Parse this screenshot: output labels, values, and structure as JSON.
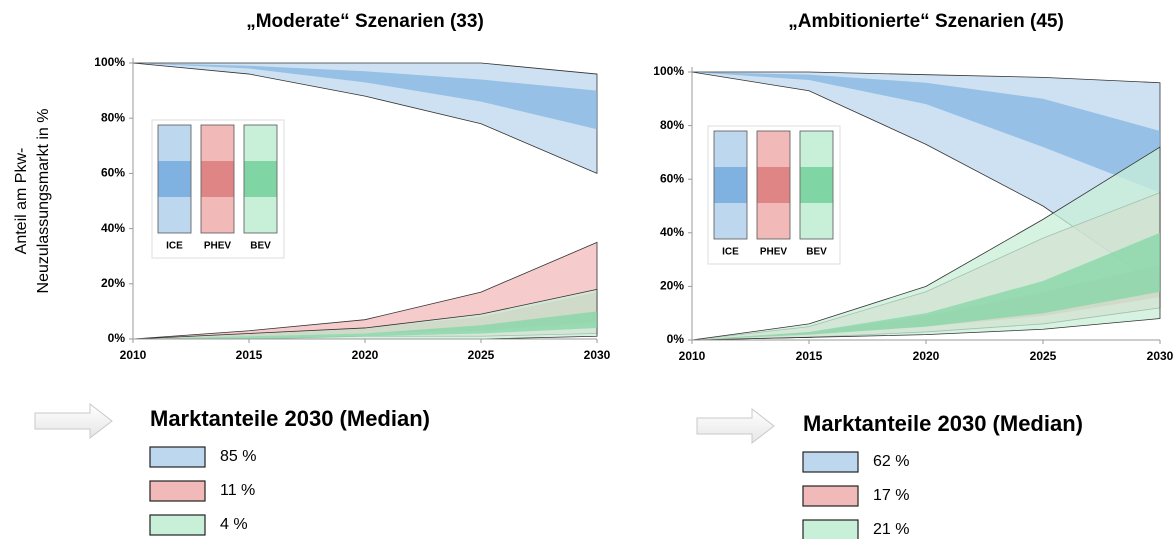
{
  "chart_data": [
    {
      "type": "band",
      "title": "„Moderate“ Szenarien (33)",
      "ylabel": [
        "Anteil am Pkw-",
        "Neuzulassungsmarkt in %"
      ],
      "x": [
        2010,
        2015,
        2020,
        2025,
        2030
      ],
      "xlim": [
        2010,
        2030
      ],
      "xticks": [
        2010,
        2015,
        2020,
        2025,
        2030
      ],
      "ylim": [
        0,
        100
      ],
      "yticks": [
        {
          "value": 0,
          "label": "0%"
        },
        {
          "value": 20,
          "label": "20%"
        },
        {
          "value": 40,
          "label": "40%"
        },
        {
          "value": 60,
          "label": "60%"
        },
        {
          "value": 80,
          "label": "80%"
        },
        {
          "value": 100,
          "label": "100%"
        }
      ],
      "series": [
        {
          "name": "ICE",
          "color": "#bdd7ee",
          "inner_color": "#7fb2e0",
          "high": [
            100,
            100,
            100,
            100,
            96
          ],
          "low": [
            100,
            96,
            88,
            78,
            60
          ],
          "inner_high": [
            100,
            99,
            97,
            94,
            90
          ],
          "inner_low": [
            100,
            98,
            93,
            86,
            76
          ]
        },
        {
          "name": "PHEV",
          "color": "#f2b9b9",
          "inner_color": "#e08585",
          "high": [
            0,
            3,
            7,
            17,
            35
          ],
          "low": [
            0,
            0,
            1,
            1,
            2
          ],
          "inner_high": [
            0,
            2,
            4,
            8,
            17
          ],
          "inner_low": [
            0,
            1,
            2,
            3,
            6
          ]
        },
        {
          "name": "BEV",
          "color": "#c8efd8",
          "inner_color": "#7fd6a4",
          "high": [
            0,
            2,
            4,
            9,
            18
          ],
          "low": [
            0,
            0,
            0,
            0,
            1
          ],
          "inner_high": [
            0,
            1,
            2,
            5,
            10
          ],
          "inner_low": [
            0,
            0,
            1,
            2,
            4
          ]
        }
      ],
      "summary": {
        "title": "Marktanteile 2030 (Median)",
        "values": [
          85,
          11,
          4
        ],
        "value_labels": [
          "85 %",
          "11 %",
          "4 %"
        ]
      }
    },
    {
      "type": "band",
      "title": "„Ambitionierte“ Szenarien (45)",
      "x": [
        2010,
        2015,
        2020,
        2025,
        2030
      ],
      "xlim": [
        2010,
        2030
      ],
      "xticks": [
        2010,
        2015,
        2020,
        2025,
        2030
      ],
      "ylim": [
        0,
        100
      ],
      "yticks": [
        {
          "value": 0,
          "label": "0%"
        },
        {
          "value": 20,
          "label": "20%"
        },
        {
          "value": 40,
          "label": "40%"
        },
        {
          "value": 60,
          "label": "60%"
        },
        {
          "value": 80,
          "label": "80%"
        },
        {
          "value": 100,
          "label": "100%"
        }
      ],
      "series": [
        {
          "name": "ICE",
          "color": "#bdd7ee",
          "inner_color": "#7fb2e0",
          "high": [
            100,
            100,
            99,
            98,
            96
          ],
          "low": [
            100,
            93,
            73,
            50,
            20
          ],
          "inner_high": [
            100,
            99,
            96,
            90,
            78
          ],
          "inner_low": [
            100,
            97,
            88,
            72,
            55
          ]
        },
        {
          "name": "PHEV",
          "color": "#f2b9b9",
          "inner_color": "#e08585",
          "high": [
            0,
            5,
            18,
            38,
            55
          ],
          "low": [
            0,
            1,
            3,
            6,
            12
          ],
          "inner_high": [
            0,
            3,
            9,
            18,
            28
          ],
          "inner_low": [
            0,
            2,
            5,
            9,
            16
          ]
        },
        {
          "name": "BEV",
          "color": "#c8efd8",
          "inner_color": "#7fd6a4",
          "high": [
            0,
            6,
            20,
            45,
            72
          ],
          "low": [
            0,
            1,
            2,
            4,
            8
          ],
          "inner_high": [
            0,
            3,
            10,
            22,
            40
          ],
          "inner_low": [
            0,
            2,
            5,
            10,
            18
          ]
        }
      ],
      "summary": {
        "title": "Marktanteile 2030 (Median)",
        "values": [
          62,
          17,
          21
        ],
        "value_labels": [
          "62 %",
          "17 %",
          "21 %"
        ]
      }
    }
  ]
}
